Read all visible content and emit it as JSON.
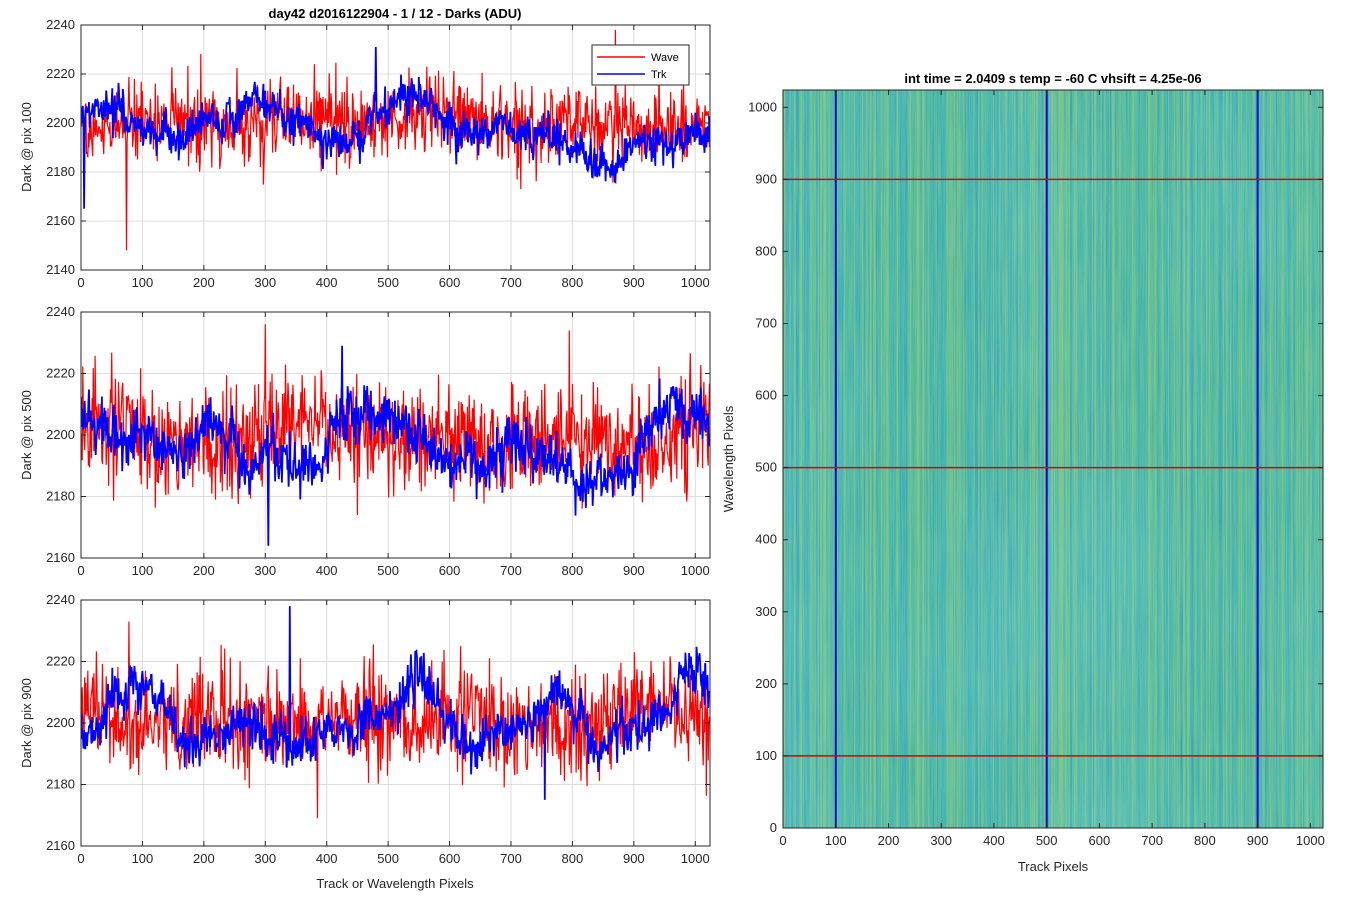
{
  "chart_data": [
    {
      "type": "line",
      "title": "day42 d2016122904 - 1 / 12 - Darks (ADU)",
      "ylabel": "Dark @ pix 100",
      "xlabel": "",
      "xlim": [
        0,
        1024
      ],
      "ylim": [
        2140,
        2240
      ],
      "xticks": [
        0,
        100,
        200,
        300,
        400,
        500,
        600,
        700,
        800,
        900,
        1000
      ],
      "yticks": [
        2140,
        2160,
        2180,
        2200,
        2220,
        2240
      ],
      "grid": true,
      "legend": {
        "position": "top-right",
        "entries": [
          "Wave",
          "Trk"
        ]
      },
      "series": [
        {
          "name": "Wave",
          "color": "#ff0000",
          "mean": 2200,
          "noise": 7.5,
          "drift": 1.5,
          "spikes": [
            [
              74,
              2148
            ],
            [
              870,
              2238
            ]
          ]
        },
        {
          "name": "Trk",
          "color": "#0000ff",
          "mean": 2198,
          "noise": 3.5,
          "drift": 7,
          "spikes": [
            [
              5,
              2165
            ],
            [
              480,
              2231
            ]
          ]
        }
      ]
    },
    {
      "type": "line",
      "title": "",
      "ylabel": "Dark @ pix 500",
      "xlabel": "",
      "xlim": [
        0,
        1024
      ],
      "ylim": [
        2160,
        2240
      ],
      "xticks": [
        0,
        100,
        200,
        300,
        400,
        500,
        600,
        700,
        800,
        900,
        1000
      ],
      "yticks": [
        2160,
        2180,
        2200,
        2220,
        2240
      ],
      "grid": true,
      "series": [
        {
          "name": "Wave",
          "color": "#ff0000",
          "mean": 2200,
          "noise": 8.5,
          "drift": 1.5,
          "spikes": [
            [
              300,
              2236
            ],
            [
              795,
              2234
            ]
          ]
        },
        {
          "name": "Trk",
          "color": "#0000ff",
          "mean": 2197,
          "noise": 4,
          "drift": 8,
          "spikes": [
            [
              305,
              2164
            ],
            [
              425,
              2229
            ]
          ]
        }
      ]
    },
    {
      "type": "line",
      "title": "",
      "ylabel": "Dark @ pix 900",
      "xlabel": "Track or Wavelength Pixels",
      "xlim": [
        0,
        1024
      ],
      "ylim": [
        2160,
        2240
      ],
      "xticks": [
        0,
        100,
        200,
        300,
        400,
        500,
        600,
        700,
        800,
        900,
        1000
      ],
      "yticks": [
        2160,
        2180,
        2200,
        2220,
        2240
      ],
      "grid": true,
      "series": [
        {
          "name": "Wave",
          "color": "#ff0000",
          "mean": 2201,
          "noise": 8,
          "drift": 1.5,
          "spikes": [
            [
              78,
              2233
            ],
            [
              385,
              2169
            ]
          ]
        },
        {
          "name": "Trk",
          "color": "#0000ff",
          "mean": 2200,
          "noise": 3.5,
          "drift": 7,
          "spikes": [
            [
              340,
              2238
            ],
            [
              755,
              2175
            ]
          ]
        }
      ]
    },
    {
      "type": "heatmap",
      "title": "int time = 2.0409 s    temp = -60 C    vhsift = 4.25e-06",
      "xlabel": "Track Pixels",
      "ylabel": "Wavelength Pixels",
      "xlim": [
        0,
        1024
      ],
      "ylim": [
        0,
        1024
      ],
      "xticks": [
        0,
        100,
        200,
        300,
        400,
        500,
        600,
        700,
        800,
        900,
        1000
      ],
      "yticks": [
        0,
        100,
        200,
        300,
        400,
        500,
        600,
        700,
        800,
        900,
        1000
      ],
      "colormap": [
        "#1b95d6",
        "#2ba8c8",
        "#3cb0a8",
        "#5aba90",
        "#8fc576"
      ],
      "vertical_markers": {
        "color": "#0000cc",
        "x": [
          100,
          500,
          900
        ]
      },
      "horizontal_markers": {
        "color": "#dd0000",
        "y": [
          100,
          500,
          900
        ]
      }
    }
  ]
}
